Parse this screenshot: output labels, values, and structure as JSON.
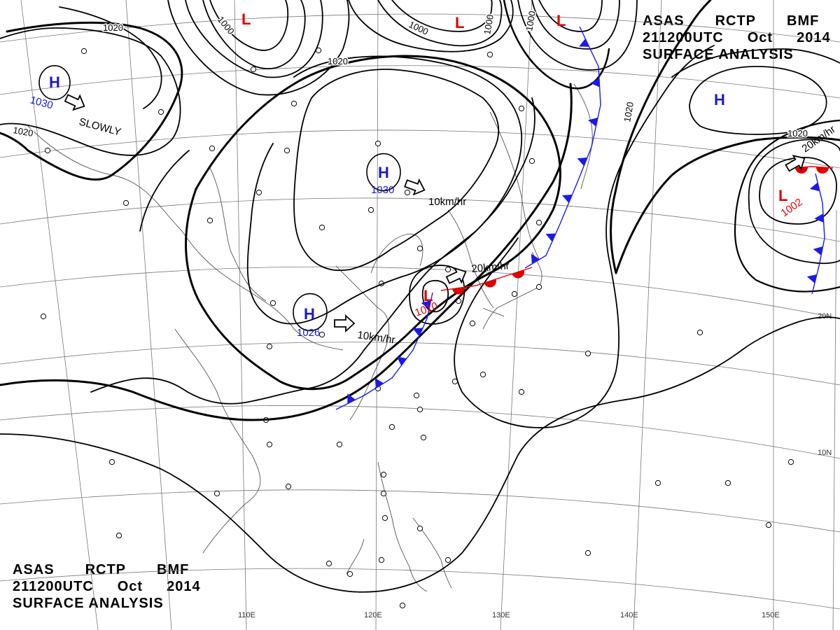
{
  "header": {
    "line1": [
      "ASAS",
      "RCTP",
      "BMF"
    ],
    "line2": [
      "211200UTC",
      "Oct",
      "2014"
    ],
    "line3": "SURFACE ANALYSIS"
  },
  "footer": {
    "line1": [
      "ASAS",
      "RCTP",
      "BMF"
    ],
    "line2": [
      "211200UTC",
      "Oct",
      "2014"
    ],
    "line3": "SURFACE ANALYSIS"
  },
  "colors": {
    "high": "#1a1acc",
    "low": "#e00000",
    "cold_front": "#1a1aee",
    "warm_front": "#e00000",
    "isobar": "#000000",
    "grid": "#777777",
    "coast": "#555555"
  },
  "longitude_labels": [
    "110E",
    "120E",
    "130E",
    "140E",
    "150E"
  ],
  "latitude_labels": [
    "20N",
    "10N"
  ],
  "pressure_centers": [
    {
      "type": "H",
      "letter": "H",
      "value": "1030",
      "note": "northwest high"
    },
    {
      "type": "H",
      "letter": "H",
      "value": "1030",
      "note": "north china high"
    },
    {
      "type": "H",
      "letter": "H",
      "value": "1026",
      "note": "southeast china high"
    },
    {
      "type": "H",
      "letter": "H",
      "value": "",
      "note": "northeast pacific high"
    },
    {
      "type": "L",
      "letter": "L",
      "value": "",
      "note": "top low 1"
    },
    {
      "type": "L",
      "letter": "L",
      "value": "",
      "note": "top low 2"
    },
    {
      "type": "L",
      "letter": "L",
      "value": "",
      "note": "top low 3"
    },
    {
      "type": "L",
      "letter": "L",
      "value": "1010",
      "note": "east china sea low"
    },
    {
      "type": "L",
      "letter": "L",
      "value": "1002",
      "note": "east low"
    }
  ],
  "motion_labels": [
    "SLOWLY",
    "10km/hr",
    "20km/hr",
    "10km/hr",
    "20km/hr"
  ],
  "isobar_labels": [
    "1020",
    "1000",
    "1000",
    "1000",
    "1020",
    "1000",
    "1020",
    "1020",
    "1020"
  ]
}
